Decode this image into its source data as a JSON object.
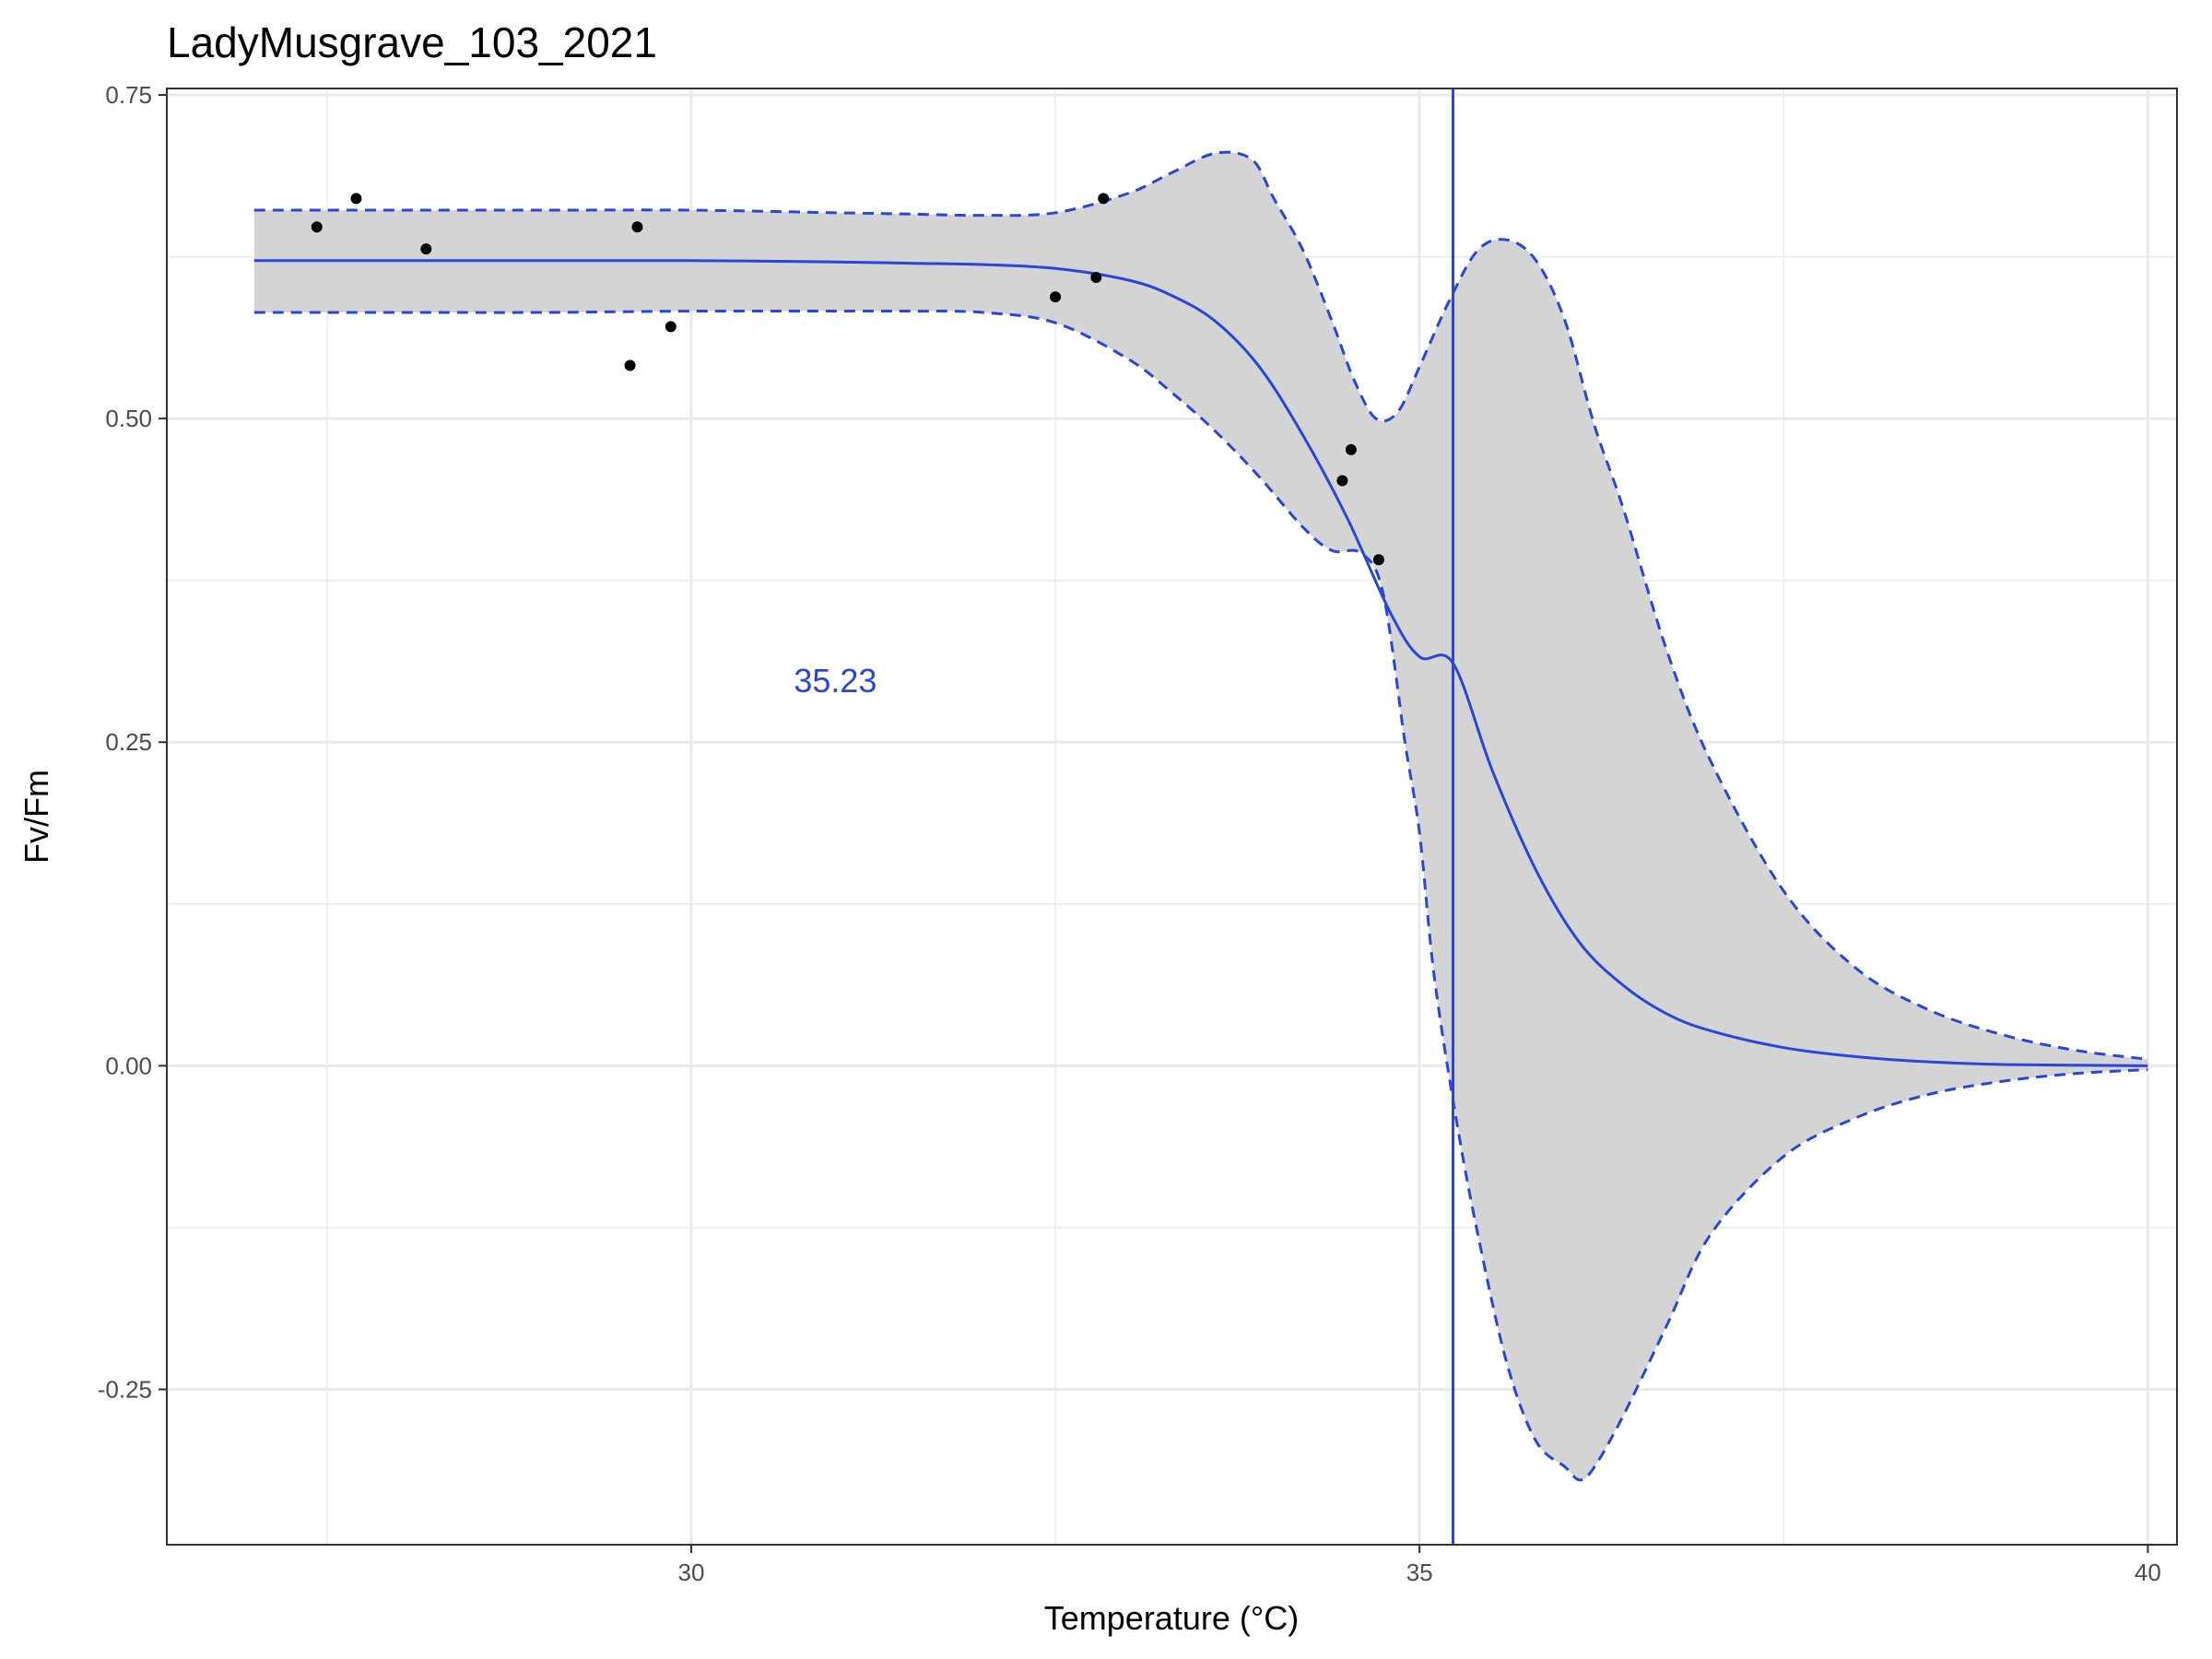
{
  "chart_data": {
    "type": "line",
    "title": "LadyMusgrave_103_2021",
    "xlabel": "Temperature (°C)",
    "ylabel": "Fv/Fm",
    "xlim": [
      26.4,
      40.2
    ],
    "ylim": [
      -0.37,
      0.755
    ],
    "x_ticks": [
      30,
      35,
      40
    ],
    "x_tick_labels": [
      "30",
      "35",
      "40"
    ],
    "y_ticks": [
      -0.25,
      0,
      0.25,
      0.5,
      0.75
    ],
    "y_tick_labels": [
      "-0.25",
      "0.00",
      "0.25",
      "0.50",
      "0.75"
    ],
    "grid": true,
    "legend": "none",
    "colors": {
      "accent": "#2b45d6",
      "band": "#d4d4d4",
      "points": "#000000",
      "panel_border": "#333333",
      "grid": "#ebebeb"
    },
    "points": {
      "x": [
        27.43,
        27.7,
        28.18,
        29.58,
        29.63,
        29.86,
        32.5,
        32.78,
        32.83,
        34.47,
        34.53,
        34.72
      ],
      "y": [
        0.648,
        0.67,
        0.631,
        0.541,
        0.648,
        0.571,
        0.594,
        0.609,
        0.67,
        0.452,
        0.476,
        0.391
      ]
    },
    "fit": {
      "name": "",
      "x": [
        27.0,
        28.0,
        29.0,
        30.0,
        31.0,
        31.5,
        32.0,
        32.5,
        33.0,
        33.3,
        33.6,
        33.9,
        34.2,
        34.5,
        34.8,
        35.0,
        35.23,
        35.5,
        35.8,
        36.1,
        36.4,
        36.7,
        37.0,
        37.5,
        38.0,
        38.5,
        39.0,
        40.0
      ],
      "y": [
        0.622,
        0.622,
        0.622,
        0.622,
        0.621,
        0.62,
        0.619,
        0.616,
        0.607,
        0.595,
        0.575,
        0.54,
        0.487,
        0.424,
        0.35,
        0.316,
        0.311,
        0.228,
        0.151,
        0.095,
        0.062,
        0.04,
        0.027,
        0.014,
        0.007,
        0.003,
        0.001,
        0.0
      ]
    },
    "ci_upper": {
      "x": [
        27.0,
        28.0,
        29.0,
        30.0,
        31.0,
        31.5,
        32.0,
        32.5,
        33.0,
        33.3,
        33.6,
        33.85,
        34.0,
        34.2,
        34.4,
        34.55,
        34.7,
        34.85,
        35.0,
        35.2,
        35.4,
        35.6,
        35.8,
        36.0,
        36.2,
        36.4,
        36.7,
        37.0,
        37.5,
        38.0,
        38.5,
        39.0,
        39.5,
        40.0
      ],
      "y": [
        0.661,
        0.661,
        0.661,
        0.661,
        0.659,
        0.658,
        0.657,
        0.659,
        0.674,
        0.69,
        0.705,
        0.7,
        0.67,
        0.63,
        0.575,
        0.53,
        0.5,
        0.505,
        0.54,
        0.59,
        0.63,
        0.638,
        0.622,
        0.575,
        0.495,
        0.43,
        0.32,
        0.235,
        0.135,
        0.075,
        0.043,
        0.024,
        0.012,
        0.005
      ]
    },
    "ci_lower": {
      "x": [
        27.0,
        28.0,
        29.0,
        30.0,
        31.0,
        31.5,
        32.0,
        32.5,
        33.0,
        33.3,
        33.6,
        33.9,
        34.2,
        34.4,
        34.6,
        34.75,
        34.9,
        35.0,
        35.1,
        35.25,
        35.4,
        35.6,
        35.8,
        36.0,
        36.1,
        36.2,
        36.4,
        36.7,
        37.0,
        37.5,
        38.0,
        38.5,
        39.0,
        39.5,
        40.0
      ],
      "y": [
        0.582,
        0.582,
        0.582,
        0.583,
        0.583,
        0.583,
        0.582,
        0.574,
        0.546,
        0.52,
        0.49,
        0.455,
        0.416,
        0.398,
        0.396,
        0.365,
        0.25,
        0.18,
        0.07,
        -0.04,
        -0.13,
        -0.23,
        -0.29,
        -0.31,
        -0.32,
        -0.31,
        -0.27,
        -0.2,
        -0.13,
        -0.07,
        -0.04,
        -0.022,
        -0.012,
        -0.006,
        -0.003
      ]
    },
    "vline": {
      "x": 35.23
    },
    "annotations": [
      {
        "text": "35.23",
        "x": 30.99,
        "y": 0.298
      }
    ]
  }
}
